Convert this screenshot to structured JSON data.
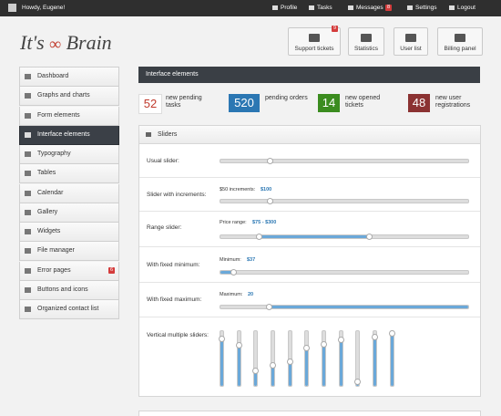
{
  "topbar": {
    "greeting": "Howdy, Eugene!",
    "links": [
      {
        "label": "Profile"
      },
      {
        "label": "Tasks"
      },
      {
        "label": "Messages",
        "badge": 8
      },
      {
        "label": "Settings"
      },
      {
        "label": "Logout"
      }
    ]
  },
  "logo": {
    "left": "It's",
    "right": "Brain"
  },
  "shortcuts": [
    {
      "label": "Support tickets",
      "badge": 9
    },
    {
      "label": "Statistics"
    },
    {
      "label": "User list"
    },
    {
      "label": "Billing panel"
    }
  ],
  "sidebar": [
    {
      "label": "Dashboard"
    },
    {
      "label": "Graphs and charts"
    },
    {
      "label": "Form elements"
    },
    {
      "label": "Interface elements",
      "active": true
    },
    {
      "label": "Typography"
    },
    {
      "label": "Tables"
    },
    {
      "label": "Calendar"
    },
    {
      "label": "Gallery"
    },
    {
      "label": "Widgets"
    },
    {
      "label": "File manager"
    },
    {
      "label": "Error pages",
      "badge": 6
    },
    {
      "label": "Buttons and icons"
    },
    {
      "label": "Organized contact list"
    }
  ],
  "page_title": "Interface elements",
  "stats": [
    {
      "value": 52,
      "label": "new pending tasks",
      "color": "#ffffff"
    },
    {
      "value": 520,
      "label": "pending orders",
      "color": "#2b77b3"
    },
    {
      "value": 14,
      "label": "new opened tickets",
      "color": "#3b8c1f"
    },
    {
      "value": 48,
      "label": "new user registrations",
      "color": "#8b3232"
    }
  ],
  "sliders": {
    "title": "Sliders",
    "rows": [
      {
        "label": "Usual slider:"
      },
      {
        "label": "Slider with increments:",
        "caption": "$50 increments:",
        "value": "$100"
      },
      {
        "label": "Range slider:",
        "caption": "Price range:",
        "value": "$75 - $300"
      },
      {
        "label": "With fixed minimum:",
        "caption": "Minimum:",
        "value": "$37"
      },
      {
        "label": "With fixed maximum:",
        "caption": "Maximum:",
        "value": "20"
      },
      {
        "label": "Vertical multiple sliders:"
      }
    ]
  }
}
